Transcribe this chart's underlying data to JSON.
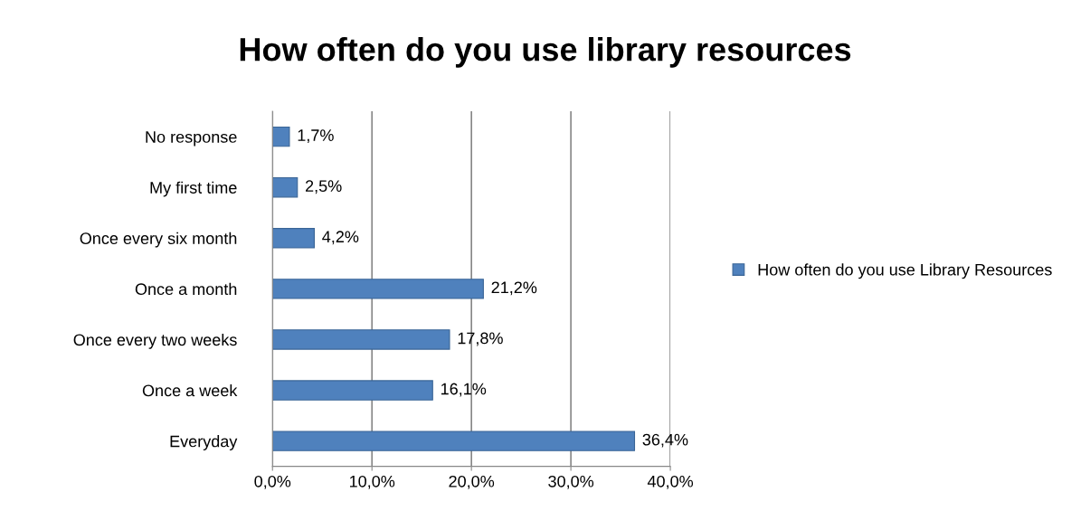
{
  "chart_data": {
    "type": "bar",
    "orientation": "horizontal",
    "title": "How often do you use library resources",
    "categories": [
      "No response",
      "My first time",
      "Once every six month",
      "Once a month",
      "Once every two weeks",
      "Once a week",
      "Everyday"
    ],
    "series": [
      {
        "name": "How often do you use Library Resources",
        "color": "#4f81bd",
        "values": [
          1.7,
          2.5,
          4.2,
          21.2,
          17.8,
          16.1,
          36.4
        ],
        "value_labels": [
          "1,7%",
          "2,5%",
          "4,2%",
          "21,2%",
          "17,8%",
          "16,1%",
          "36,4%"
        ]
      }
    ],
    "xlim": [
      0,
      40
    ],
    "xticks": [
      {
        "value": 0,
        "label": "0,0%"
      },
      {
        "value": 10,
        "label": "10,0%"
      },
      {
        "value": 20,
        "label": "20,0%"
      },
      {
        "value": 30,
        "label": "30,0%"
      },
      {
        "value": 40,
        "label": "40,0%"
      }
    ],
    "grid": "x",
    "legend": "right"
  }
}
